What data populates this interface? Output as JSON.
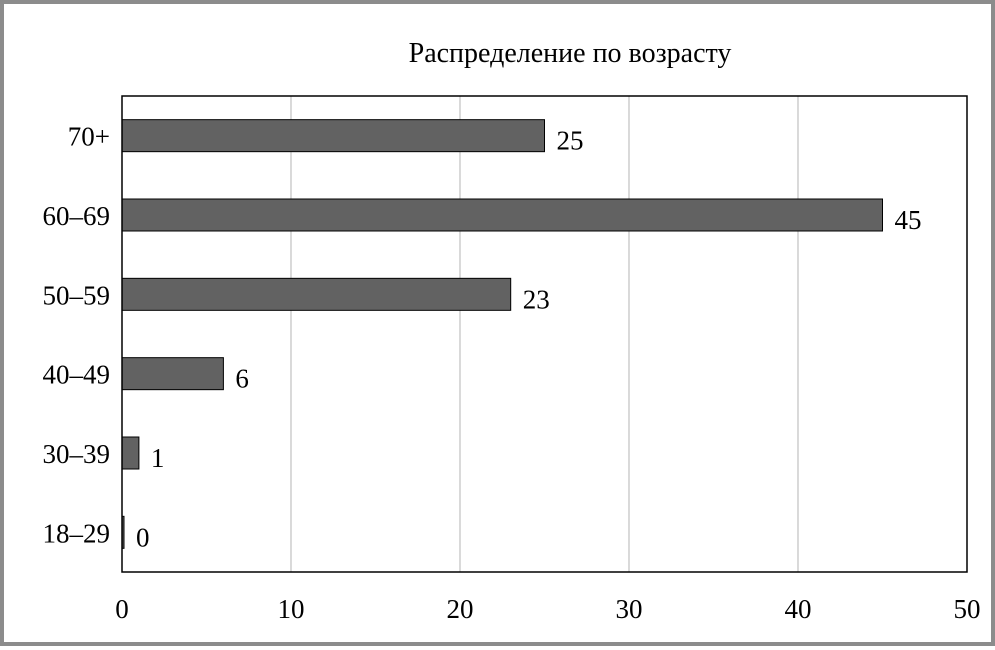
{
  "chart_data": {
    "type": "bar",
    "orientation": "horizontal",
    "title": "Распределение по возрасту",
    "categories": [
      "70+",
      "60–69",
      "50–59",
      "40–49",
      "30–39",
      "18–29"
    ],
    "values": [
      25,
      45,
      23,
      6,
      1,
      0
    ],
    "data_labels": [
      "25",
      "45",
      "23",
      "6",
      "1",
      "0"
    ],
    "xlim": [
      0,
      50
    ],
    "xticks": [
      "0",
      "10",
      "20",
      "30",
      "40",
      "50"
    ],
    "xlabel": "",
    "ylabel": "",
    "grid": "vertical",
    "legend": "none",
    "bar_color": "#626262",
    "grid_color": "#c0c0c0"
  }
}
